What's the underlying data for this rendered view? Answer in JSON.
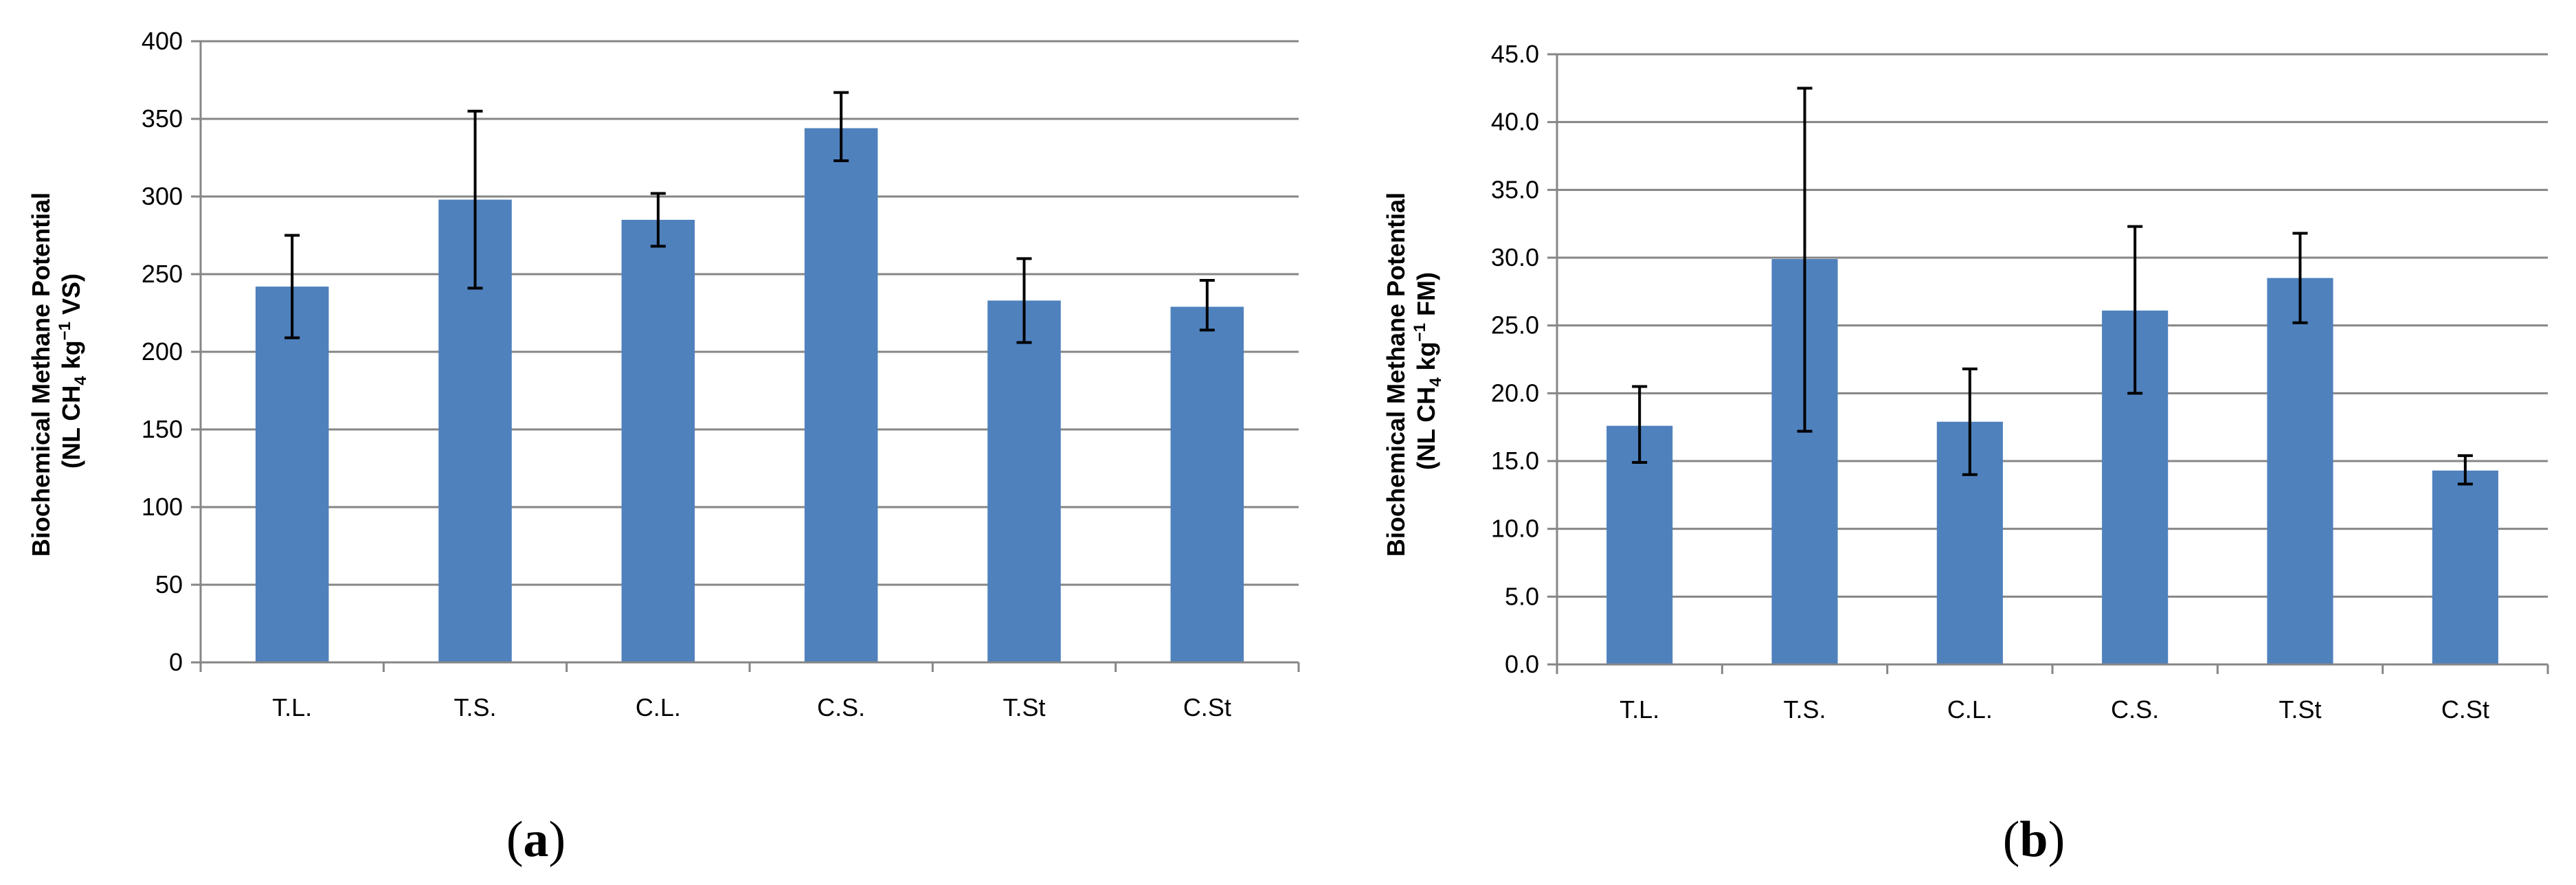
{
  "colors": {
    "bar": "#4F81BD",
    "grid": "#868686",
    "error_bar": "#000000"
  },
  "chart_data": [
    {
      "type": "bar",
      "panel_label": {
        "open": "(",
        "letter": "a",
        "close": ")"
      },
      "categories": [
        "T.L.",
        "T.S.",
        "C.L.",
        "C.S.",
        "T.St",
        "C.St"
      ],
      "values": [
        242,
        298,
        285,
        344,
        233,
        229
      ],
      "error_low": [
        209,
        241,
        268,
        323,
        206,
        214
      ],
      "error_high": [
        275,
        355,
        302,
        367,
        260,
        246
      ],
      "ylabel": {
        "line1": "Biochemical Methane Potential",
        "line2_pre": "(NL CH",
        "sub": "4",
        "mid": " kg",
        "sup": "−1",
        "post": " VS)"
      },
      "ylim": [
        0,
        400
      ],
      "yticks": [
        "0",
        "50",
        "100",
        "150",
        "200",
        "250",
        "300",
        "350",
        "400"
      ],
      "grid": true,
      "legend": "none"
    },
    {
      "type": "bar",
      "panel_label": {
        "open": "(",
        "letter": "b",
        "close": ")"
      },
      "categories": [
        "T.L.",
        "T.S.",
        "C.L.",
        "C.S.",
        "T.St",
        "C.St"
      ],
      "values": [
        17.6,
        29.9,
        17.9,
        26.1,
        28.5,
        14.3
      ],
      "error_low": [
        14.9,
        17.2,
        14.0,
        20.0,
        25.2,
        13.3
      ],
      "error_high": [
        20.5,
        42.5,
        21.8,
        32.3,
        31.8,
        15.4
      ],
      "ylabel": {
        "line1": "Biochemical Methane Potential",
        "line2_pre": "(NL CH",
        "sub": "4",
        "mid": " kg",
        "sup": "−1",
        "post": " FM)"
      },
      "ylim": [
        0,
        45
      ],
      "yticks": [
        "0.0",
        "5.0",
        "10.0",
        "15.0",
        "20.0",
        "25.0",
        "30.0",
        "35.0",
        "40.0",
        "45.0"
      ],
      "grid": true,
      "legend": "none"
    }
  ]
}
